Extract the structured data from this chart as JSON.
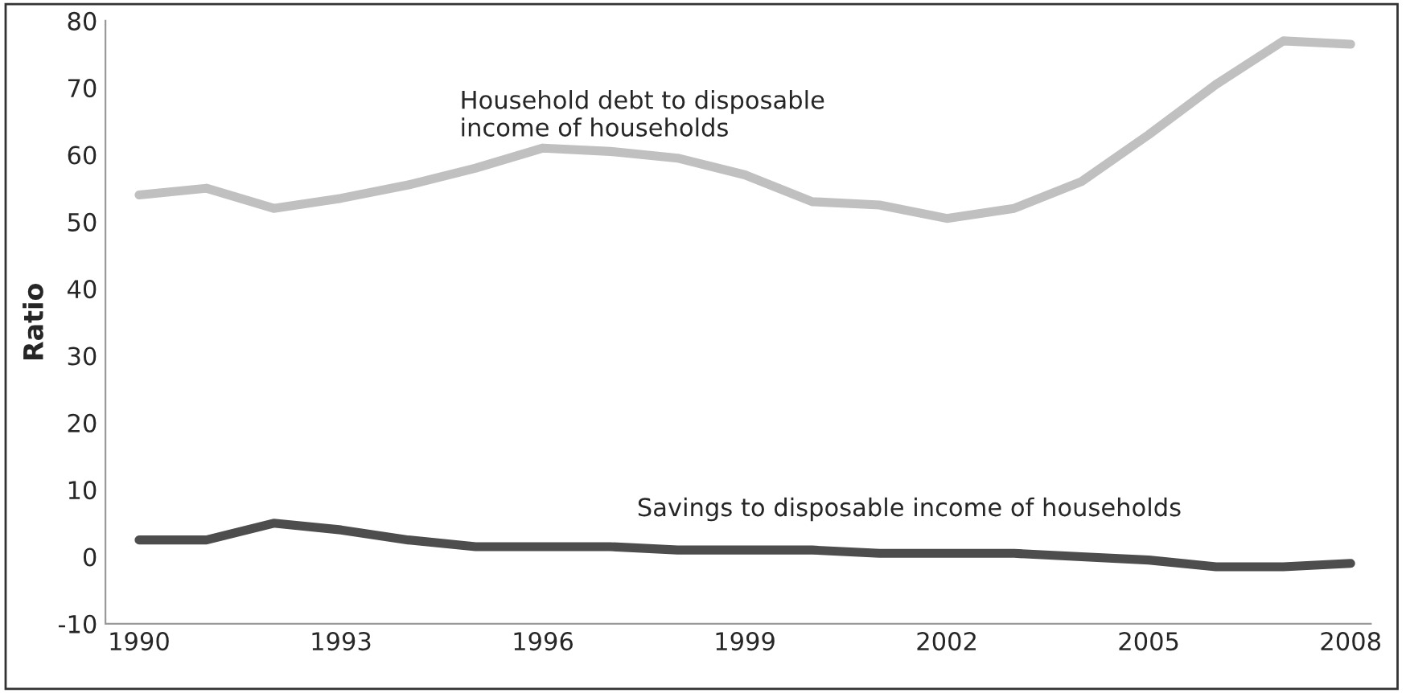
{
  "chart_data": {
    "type": "line",
    "ylabel": "Ratio",
    "x": [
      1990,
      1991,
      1992,
      1993,
      1994,
      1995,
      1996,
      1997,
      1998,
      1999,
      2000,
      2001,
      2002,
      2003,
      2004,
      2005,
      2006,
      2007,
      2008
    ],
    "series": [
      {
        "color": "#c0c0c0",
        "values": [
          54,
          55,
          52,
          53.5,
          55.5,
          58,
          61,
          60.5,
          59.5,
          57,
          53,
          52.5,
          50.5,
          52,
          56,
          63,
          70.5,
          77,
          76.5
        ]
      },
      {
        "color": "#4d4d4d",
        "values": [
          2.5,
          2.5,
          5,
          4,
          2.5,
          1.5,
          1.5,
          1.5,
          1,
          1,
          1,
          0.5,
          0.5,
          0.5,
          0,
          -0.5,
          -1.5,
          -1.5,
          -1
        ]
      }
    ],
    "annotations": [
      "Household debt to disposable\nincome of households",
      "Savings to disposable income of households"
    ],
    "xlim": [
      1989.5,
      2008.3
    ],
    "xticks": [
      1990,
      1993,
      1996,
      1999,
      2002,
      2005,
      2008
    ],
    "ylim": [
      -10,
      80
    ],
    "yticks": [
      -10,
      0,
      10,
      20,
      30,
      40,
      50,
      60,
      70,
      80
    ],
    "grid": false,
    "legend": false,
    "marker": "none",
    "line_style": "solid"
  }
}
